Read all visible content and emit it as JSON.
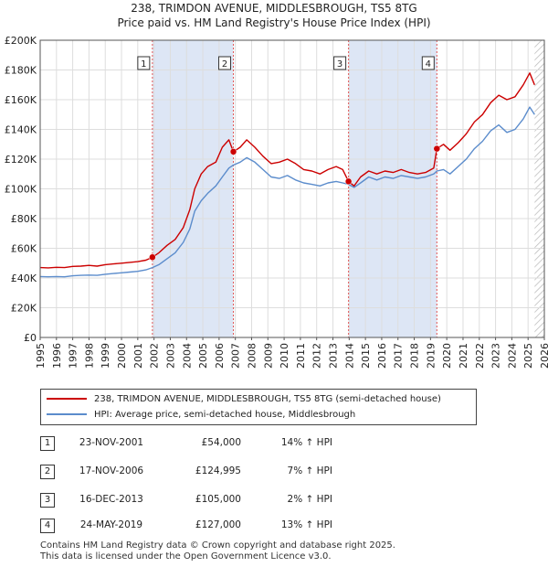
{
  "chart_data": {
    "type": "line",
    "title": "238, TRIMDON AVENUE, MIDDLESBROUGH, TS5 8TG",
    "subtitle": "Price paid vs. HM Land Registry's House Price Index (HPI)",
    "xlim": [
      1995,
      2026
    ],
    "ylim": [
      0,
      200000
    ],
    "y_ticks": [
      0,
      20000,
      40000,
      60000,
      80000,
      100000,
      120000,
      140000,
      160000,
      180000,
      200000
    ],
    "y_tick_labels": [
      "£0",
      "£20K",
      "£40K",
      "£60K",
      "£80K",
      "£100K",
      "£120K",
      "£140K",
      "£160K",
      "£180K",
      "£200K"
    ],
    "x_ticks": [
      "1995",
      "1996",
      "1997",
      "1998",
      "1999",
      "2000",
      "2001",
      "2002",
      "2003",
      "2004",
      "2005",
      "2006",
      "2007",
      "2008",
      "2009",
      "2010",
      "2011",
      "2012",
      "2013",
      "2014",
      "2015",
      "2016",
      "2017",
      "2018",
      "2019",
      "2020",
      "2021",
      "2022",
      "2023",
      "2024",
      "2025",
      "2026"
    ],
    "grid": true,
    "colors": {
      "property": "#cc0000",
      "hpi": "#5b8ccc",
      "sale_fill": "#dde6f5",
      "marker_line": "#e05555"
    },
    "series": [
      {
        "name": "238, TRIMDON AVENUE, MIDDLESBROUGH, TS5 8TG (semi-detached house)",
        "color": "#cc0000",
        "points": [
          [
            1995.0,
            47000
          ],
          [
            1995.5,
            46800
          ],
          [
            1996.0,
            47200
          ],
          [
            1996.5,
            47000
          ],
          [
            1997.0,
            47800
          ],
          [
            1997.5,
            48000
          ],
          [
            1998.0,
            48500
          ],
          [
            1998.5,
            48000
          ],
          [
            1999.0,
            49000
          ],
          [
            1999.5,
            49500
          ],
          [
            2000.0,
            50000
          ],
          [
            2000.5,
            50500
          ],
          [
            2001.0,
            51000
          ],
          [
            2001.5,
            52000
          ],
          [
            2001.9,
            54000
          ],
          [
            2002.3,
            57000
          ],
          [
            2002.8,
            62000
          ],
          [
            2003.3,
            66000
          ],
          [
            2003.8,
            74000
          ],
          [
            2004.2,
            86000
          ],
          [
            2004.5,
            100000
          ],
          [
            2004.9,
            110000
          ],
          [
            2005.3,
            115000
          ],
          [
            2005.8,
            118000
          ],
          [
            2006.2,
            128000
          ],
          [
            2006.6,
            133000
          ],
          [
            2006.88,
            124995
          ],
          [
            2007.3,
            128000
          ],
          [
            2007.7,
            133000
          ],
          [
            2008.2,
            128000
          ],
          [
            2008.7,
            122000
          ],
          [
            2009.2,
            117000
          ],
          [
            2009.7,
            118000
          ],
          [
            2010.2,
            120000
          ],
          [
            2010.7,
            117000
          ],
          [
            2011.2,
            113000
          ],
          [
            2011.7,
            112000
          ],
          [
            2012.2,
            110000
          ],
          [
            2012.7,
            113000
          ],
          [
            2013.2,
            115000
          ],
          [
            2013.6,
            113000
          ],
          [
            2013.96,
            105000
          ],
          [
            2014.3,
            102000
          ],
          [
            2014.7,
            108000
          ],
          [
            2015.2,
            112000
          ],
          [
            2015.7,
            110000
          ],
          [
            2016.2,
            112000
          ],
          [
            2016.7,
            111000
          ],
          [
            2017.2,
            113000
          ],
          [
            2017.7,
            111000
          ],
          [
            2018.2,
            110000
          ],
          [
            2018.7,
            111000
          ],
          [
            2019.2,
            114000
          ],
          [
            2019.39,
            127000
          ],
          [
            2019.8,
            130000
          ],
          [
            2020.2,
            126000
          ],
          [
            2020.7,
            131000
          ],
          [
            2021.2,
            137000
          ],
          [
            2021.7,
            145000
          ],
          [
            2022.2,
            150000
          ],
          [
            2022.7,
            158000
          ],
          [
            2023.2,
            163000
          ],
          [
            2023.7,
            160000
          ],
          [
            2024.2,
            162000
          ],
          [
            2024.7,
            170000
          ],
          [
            2025.1,
            178000
          ],
          [
            2025.4,
            170000
          ]
        ]
      },
      {
        "name": "HPI: Average price, semi-detached house, Middlesbrough",
        "color": "#5b8ccc",
        "points": [
          [
            1995.0,
            41000
          ],
          [
            1995.5,
            40800
          ],
          [
            1996.0,
            41000
          ],
          [
            1996.5,
            40800
          ],
          [
            1997.0,
            41500
          ],
          [
            1997.5,
            41800
          ],
          [
            1998.0,
            42000
          ],
          [
            1998.5,
            41800
          ],
          [
            1999.0,
            42500
          ],
          [
            1999.5,
            43000
          ],
          [
            2000.0,
            43500
          ],
          [
            2000.5,
            44000
          ],
          [
            2001.0,
            44500
          ],
          [
            2001.5,
            45500
          ],
          [
            2001.9,
            47000
          ],
          [
            2002.3,
            49000
          ],
          [
            2002.8,
            53000
          ],
          [
            2003.3,
            57000
          ],
          [
            2003.8,
            64000
          ],
          [
            2004.2,
            73000
          ],
          [
            2004.5,
            85000
          ],
          [
            2004.9,
            92000
          ],
          [
            2005.3,
            97000
          ],
          [
            2005.8,
            102000
          ],
          [
            2006.2,
            108000
          ],
          [
            2006.6,
            114000
          ],
          [
            2006.88,
            116000
          ],
          [
            2007.3,
            118000
          ],
          [
            2007.7,
            121000
          ],
          [
            2008.2,
            118000
          ],
          [
            2008.7,
            113000
          ],
          [
            2009.2,
            108000
          ],
          [
            2009.7,
            107000
          ],
          [
            2010.2,
            109000
          ],
          [
            2010.7,
            106000
          ],
          [
            2011.2,
            104000
          ],
          [
            2011.7,
            103000
          ],
          [
            2012.2,
            102000
          ],
          [
            2012.7,
            104000
          ],
          [
            2013.2,
            105000
          ],
          [
            2013.6,
            104000
          ],
          [
            2013.96,
            103000
          ],
          [
            2014.3,
            101000
          ],
          [
            2014.7,
            104000
          ],
          [
            2015.2,
            108000
          ],
          [
            2015.7,
            106000
          ],
          [
            2016.2,
            108000
          ],
          [
            2016.7,
            107000
          ],
          [
            2017.2,
            109000
          ],
          [
            2017.7,
            108000
          ],
          [
            2018.2,
            107000
          ],
          [
            2018.7,
            108000
          ],
          [
            2019.2,
            110000
          ],
          [
            2019.39,
            112000
          ],
          [
            2019.8,
            113000
          ],
          [
            2020.2,
            110000
          ],
          [
            2020.7,
            115000
          ],
          [
            2021.2,
            120000
          ],
          [
            2021.7,
            127000
          ],
          [
            2022.2,
            132000
          ],
          [
            2022.7,
            139000
          ],
          [
            2023.2,
            143000
          ],
          [
            2023.7,
            138000
          ],
          [
            2024.2,
            140000
          ],
          [
            2024.7,
            147000
          ],
          [
            2025.1,
            155000
          ],
          [
            2025.4,
            150000
          ]
        ]
      }
    ],
    "sales": [
      {
        "label": "1",
        "x": 2001.9,
        "value": 54000
      },
      {
        "label": "2",
        "x": 2006.88,
        "value": 124995
      },
      {
        "label": "3",
        "x": 2013.96,
        "value": 105000
      },
      {
        "label": "4",
        "x": 2019.39,
        "value": 127000
      }
    ],
    "shaded_ranges": [
      [
        2001.9,
        2006.88
      ],
      [
        2013.96,
        2019.39
      ]
    ],
    "hatched_range": [
      2025.4,
      2026
    ]
  },
  "legend": {
    "property_label": "238, TRIMDON AVENUE, MIDDLESBROUGH, TS5 8TG (semi-detached house)",
    "hpi_label": "HPI: Average price, semi-detached house, Middlesbrough"
  },
  "sales_table": [
    {
      "num": "1",
      "date": "23-NOV-2001",
      "price": "£54,000",
      "hpi": "14% ↑ HPI"
    },
    {
      "num": "2",
      "date": "17-NOV-2006",
      "price": "£124,995",
      "hpi": "7% ↑ HPI"
    },
    {
      "num": "3",
      "date": "16-DEC-2013",
      "price": "£105,000",
      "hpi": "2% ↑ HPI"
    },
    {
      "num": "4",
      "date": "24-MAY-2019",
      "price": "£127,000",
      "hpi": "13% ↑ HPI"
    }
  ],
  "footer": {
    "line1": "Contains HM Land Registry data © Crown copyright and database right 2025.",
    "line2": "This data is licensed under the Open Government Licence v3.0."
  }
}
